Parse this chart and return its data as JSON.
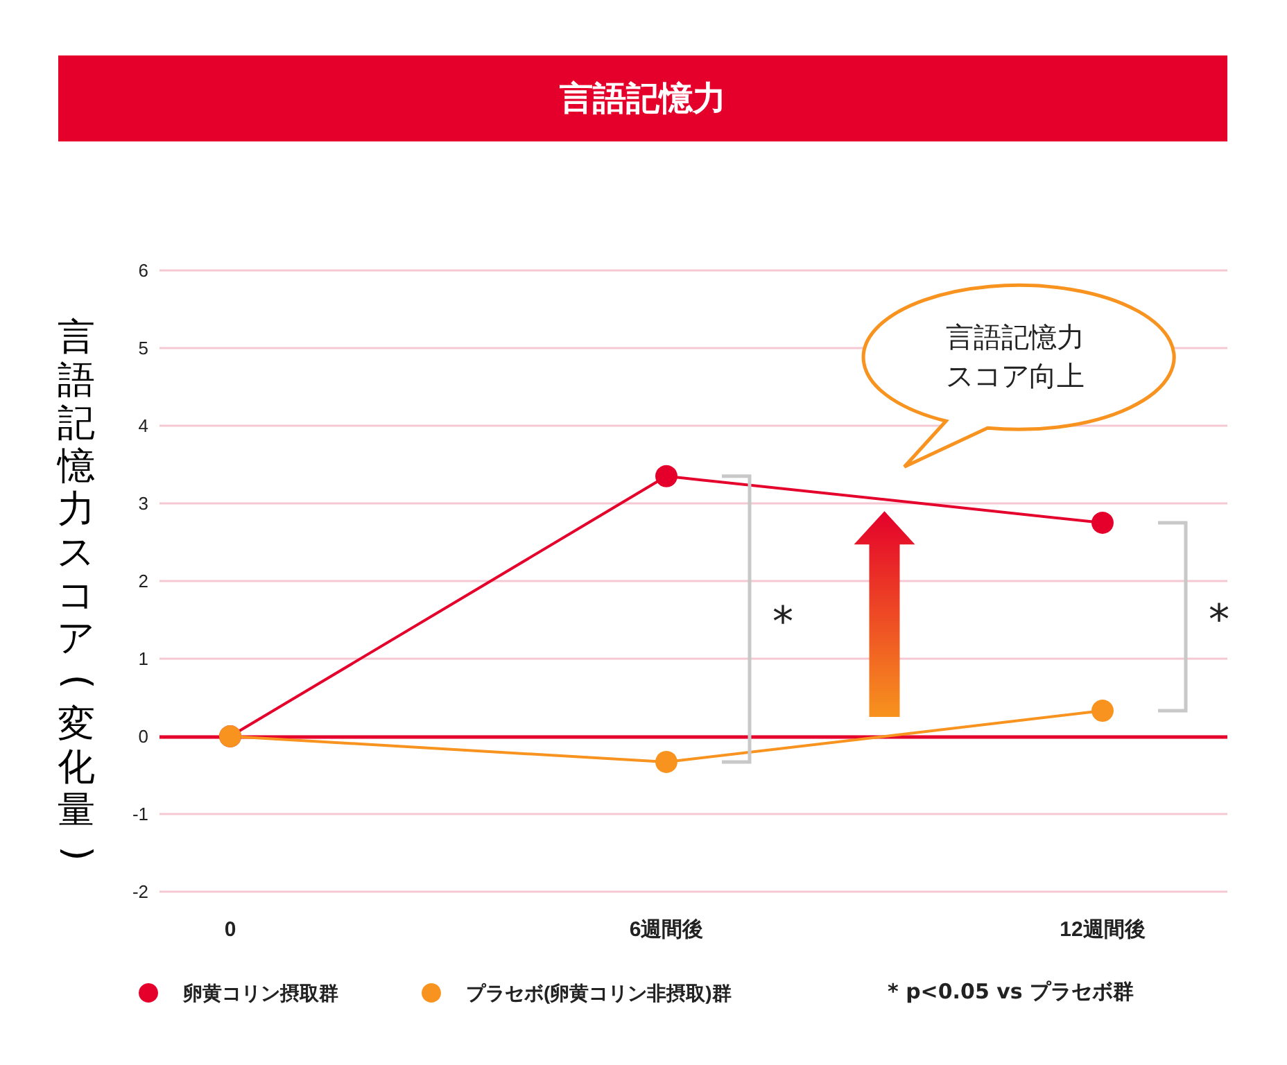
{
  "chart_data": {
    "type": "line",
    "title": "言語記憶力",
    "ylabel": "言語記憶力スコア(変化量)",
    "categories": [
      "0",
      "6週間後",
      "12週間後"
    ],
    "series": [
      {
        "name": "卵黄コリン摂取群",
        "color": "#e4002b",
        "values": [
          0,
          3.35,
          2.75
        ]
      },
      {
        "name": "プラセボ(卵黄コリン非摂取)群",
        "color": "#f7931e",
        "values": [
          0,
          -0.33,
          0.33
        ]
      }
    ],
    "ylim": [
      -2,
      6
    ],
    "yticks": [
      -2,
      -1,
      0,
      1,
      2,
      3,
      4,
      5,
      6
    ],
    "grid": "y",
    "legend": "bottom",
    "marker": "circle",
    "line_style": "solid",
    "ref_lines": [
      {
        "axis": "y",
        "value": 0,
        "color": "#e4002b"
      }
    ],
    "annotations": [
      "*",
      "*",
      "言語記憶力スコア向上",
      "* p<0.05 vs プラセボ群"
    ]
  }
}
